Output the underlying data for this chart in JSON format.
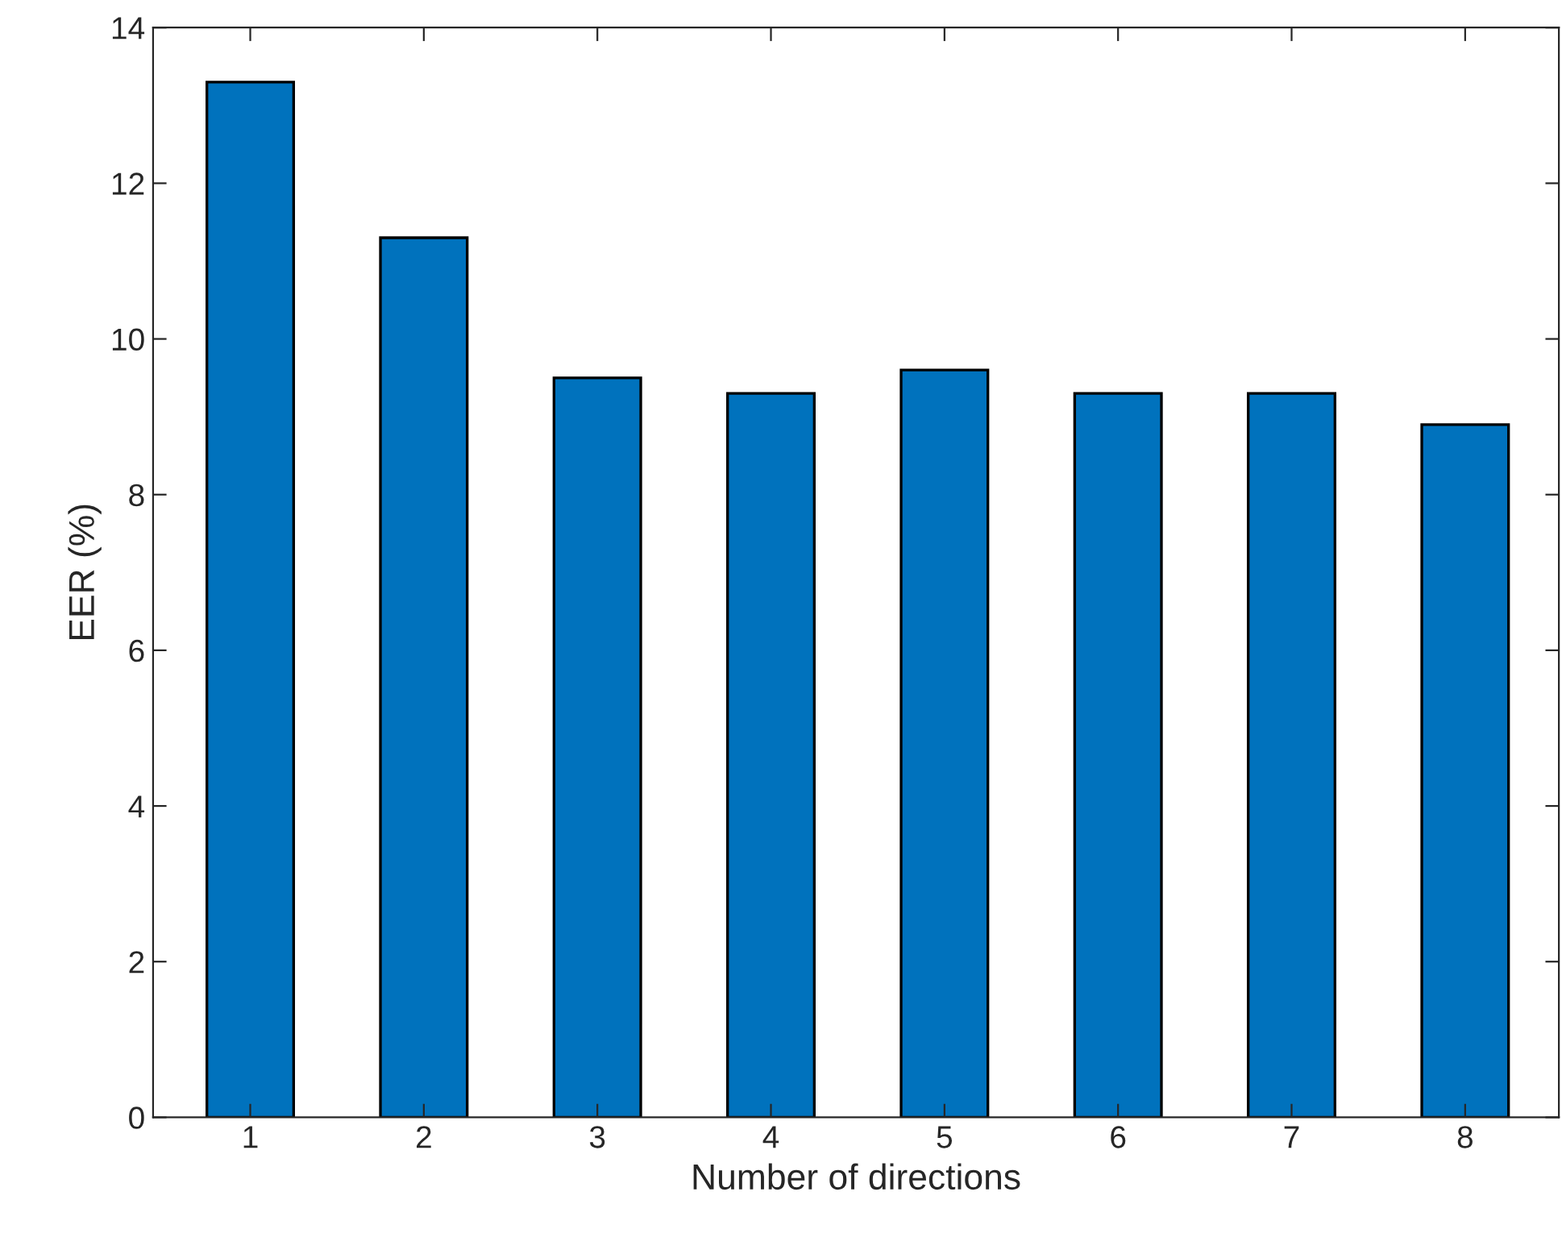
{
  "chart_data": {
    "type": "bar",
    "xlabel": "Number of directions",
    "ylabel": "EER (%)",
    "categories": [
      "1",
      "2",
      "3",
      "4",
      "5",
      "6",
      "7",
      "8"
    ],
    "values": [
      13.3,
      11.3,
      9.5,
      9.3,
      9.6,
      9.3,
      9.3,
      8.9
    ],
    "color": "#0072bd",
    "ylim": [
      0,
      14
    ],
    "yticks": [
      0,
      2,
      4,
      6,
      8,
      10,
      12,
      14
    ],
    "grid": false,
    "legend": false
  }
}
